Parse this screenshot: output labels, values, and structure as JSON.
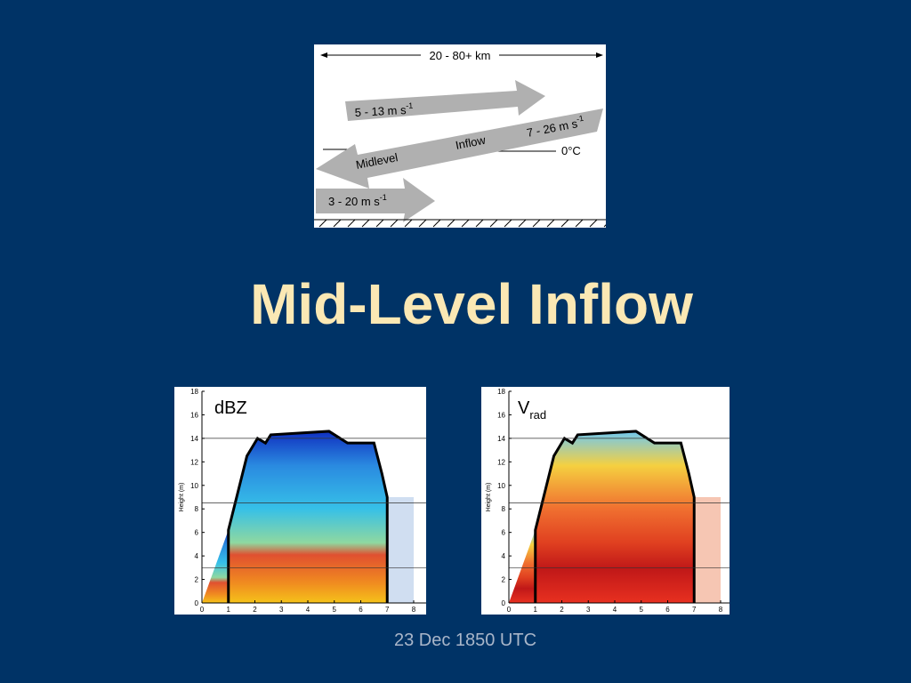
{
  "diagram": {
    "width_label": "20 - 80+ km",
    "upper_arrow": {
      "text": "5 - 13 m s",
      "sup": "-1"
    },
    "inflow_arrow": {
      "text": "7 - 26 m s",
      "sup": "-1",
      "word1": "Midlevel",
      "word2": "Inflow"
    },
    "freezing_level": "0°C",
    "lower_arrow": {
      "text": "3 - 20 m s",
      "sup": "-1"
    }
  },
  "title": "Mid-Level Inflow",
  "panels": [
    {
      "label": "dBZ",
      "y_label": "Height (m)",
      "xticks": [
        0,
        1,
        2,
        3,
        4,
        5,
        6,
        7,
        8
      ],
      "yticks": [
        0,
        2,
        4,
        6,
        8,
        10,
        12,
        14,
        16,
        18
      ]
    },
    {
      "label": "V",
      "label_sub": "rad",
      "y_label": "Height (m)",
      "xticks": [
        0,
        1,
        2,
        3,
        4,
        5,
        6,
        7,
        8
      ],
      "yticks": [
        0,
        2,
        4,
        6,
        8,
        10,
        12,
        14,
        16,
        18
      ]
    }
  ],
  "caption": "23 Dec 1850 UTC"
}
